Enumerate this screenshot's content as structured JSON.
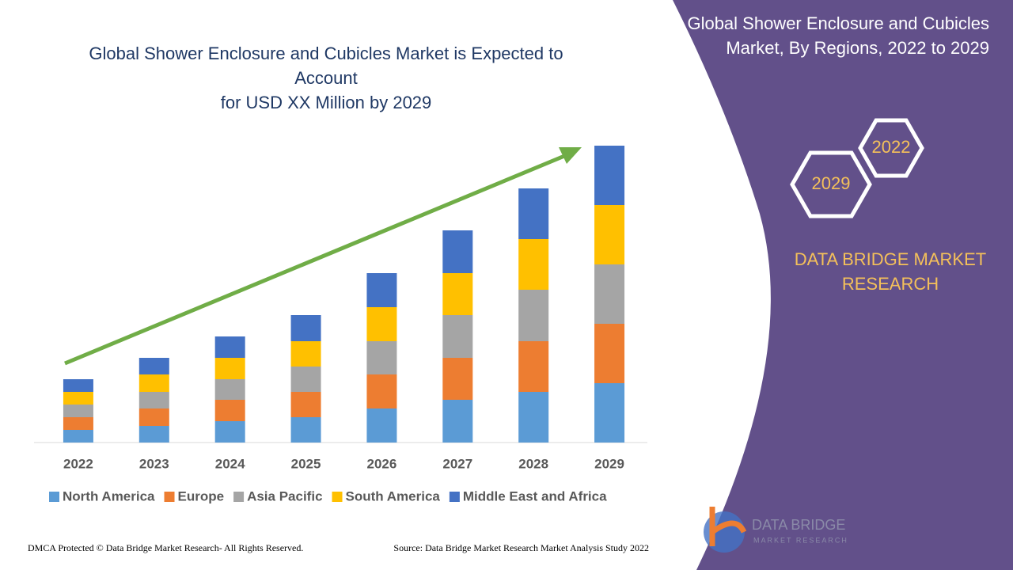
{
  "chart_data": {
    "type": "bar",
    "stacked": true,
    "title": [
      "Global Shower Enclosure and Cubicles Market is Expected to Account",
      "for USD XX Million by 2029"
    ],
    "categories": [
      "2022",
      "2023",
      "2024",
      "2025",
      "2026",
      "2027",
      "2028",
      "2029"
    ],
    "series": [
      {
        "name": "North America",
        "color": "#5b9bd5",
        "values": [
          16,
          21,
          27,
          32,
          43,
          54,
          64,
          75
        ]
      },
      {
        "name": "Europe",
        "color": "#ed7d31",
        "values": [
          16,
          22,
          27,
          32,
          43,
          53,
          64,
          75
        ]
      },
      {
        "name": "Asia Pacific",
        "color": "#a5a5a5",
        "values": [
          16,
          21,
          26,
          32,
          42,
          54,
          65,
          75
        ]
      },
      {
        "name": "South America",
        "color": "#ffc000",
        "values": [
          16,
          22,
          27,
          32,
          43,
          53,
          64,
          75
        ]
      },
      {
        "name": "Middle East and Africa",
        "color": "#4472c4",
        "values": [
          16,
          21,
          27,
          33,
          43,
          54,
          64,
          75
        ]
      }
    ]
  },
  "panel": {
    "title": "Global Shower Enclosure and Cubicles Market, By Regions, 2022 to 2029",
    "hexagons": [
      "2022",
      "2029"
    ],
    "brand": "DATA BRIDGE MARKET RESEARCH"
  },
  "logo": {
    "name": "DATA BRIDGE",
    "tagline": "MARKET RESEARCH"
  },
  "footer": {
    "left": "DMCA Protected © Data Bridge Market Research- All Rights Reserved.",
    "right": "Source: Data Bridge Market Research Market Analysis Study 2022"
  }
}
